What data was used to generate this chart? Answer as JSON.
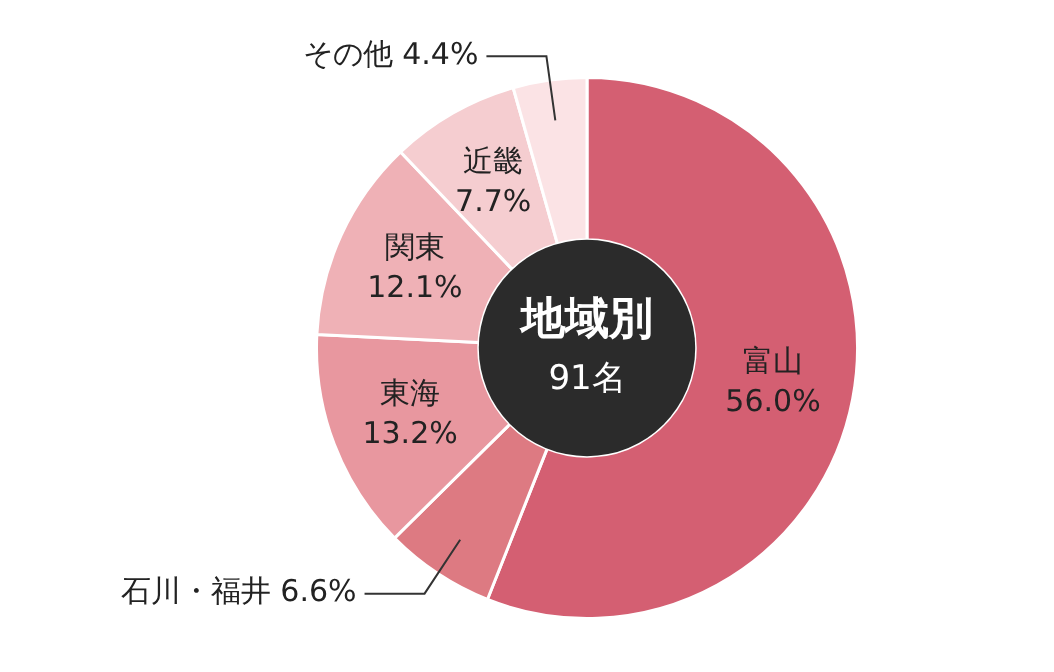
{
  "chart_data": {
    "type": "donut",
    "title": "地域別",
    "subtitle": "91名",
    "categories": [
      "富山",
      "石川・福井",
      "東海",
      "関東",
      "近畿",
      "その他"
    ],
    "values": [
      56.0,
      6.6,
      13.2,
      12.1,
      7.7,
      4.4
    ],
    "value_labels": [
      "56.0%",
      "6.6%",
      "13.2%",
      "12.1%",
      "7.7%",
      "4.4%"
    ],
    "colors": [
      "#d45f72",
      "#dd7a82",
      "#e8979f",
      "#efb1b6",
      "#f5cdd0",
      "#fbe3e5"
    ],
    "legend": false
  }
}
